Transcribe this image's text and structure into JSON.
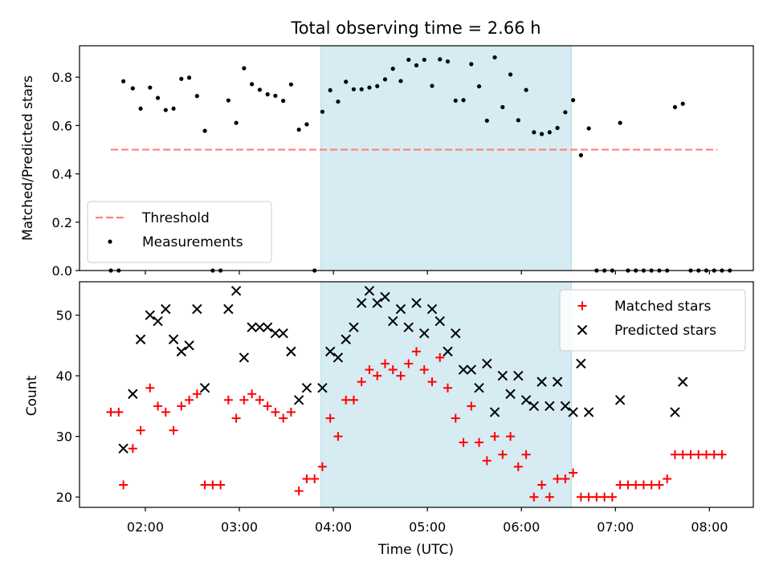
{
  "chart_data": [
    {
      "type": "scatter",
      "title": "Total observing time = 2.66 h",
      "ylabel": "Matched/Predicted stars",
      "xlabel": "",
      "xlim": [
        "01:18",
        "08:28"
      ],
      "ylim": [
        0,
        0.93
      ],
      "yticks": [
        0.0,
        0.2,
        0.4,
        0.6,
        0.8
      ],
      "yticklabels": [
        "0.0",
        "0.2",
        "0.4",
        "0.6",
        "0.8"
      ],
      "grid": false,
      "legend_position": "lower-left",
      "shaded_region": {
        "x0": "03:52",
        "x1": "06:32",
        "color": "#add8e6"
      },
      "threshold": {
        "name": "Threshold",
        "value": 0.5,
        "x0": "01:38",
        "x1": "08:05",
        "color": "#ff7f7f",
        "style": "dashed"
      },
      "series": [
        {
          "name": "Measurements",
          "color": "#000000",
          "marker": "dot",
          "points": [
            [
              "01:38",
              0
            ],
            [
              "01:43",
              0
            ],
            [
              "01:46",
              0.783
            ],
            [
              "01:52",
              0.754
            ],
            [
              "01:57",
              0.67
            ],
            [
              "02:03",
              0.757
            ],
            [
              "02:08",
              0.714
            ],
            [
              "02:13",
              0.664
            ],
            [
              "02:18",
              0.67
            ],
            [
              "02:23",
              0.793
            ],
            [
              "02:28",
              0.798
            ],
            [
              "02:33",
              0.722
            ],
            [
              "02:38",
              0.578
            ],
            [
              "02:43",
              0
            ],
            [
              "02:48",
              0
            ],
            [
              "02:53",
              0.704
            ],
            [
              "02:58",
              0.611
            ],
            [
              "03:03",
              0.837
            ],
            [
              "03:08",
              0.771
            ],
            [
              "03:13",
              0.748
            ],
            [
              "03:18",
              0.729
            ],
            [
              "03:23",
              0.723
            ],
            [
              "03:28",
              0.702
            ],
            [
              "03:33",
              0.77
            ],
            [
              "03:38",
              0.583
            ],
            [
              "03:43",
              0.605
            ],
            [
              "03:48",
              0
            ],
            [
              "03:53",
              0.657
            ],
            [
              "03:58",
              0.746
            ],
            [
              "04:03",
              0.699
            ],
            [
              "04:08",
              0.781
            ],
            [
              "04:13",
              0.75
            ],
            [
              "04:18",
              0.75
            ],
            [
              "04:23",
              0.757
            ],
            [
              "04:28",
              0.763
            ],
            [
              "04:33",
              0.791
            ],
            [
              "04:38",
              0.835
            ],
            [
              "04:43",
              0.784
            ],
            [
              "04:48",
              0.872
            ],
            [
              "04:53",
              0.849
            ],
            [
              "04:58",
              0.872
            ],
            [
              "05:03",
              0.764
            ],
            [
              "05:08",
              0.874
            ],
            [
              "05:13",
              0.865
            ],
            [
              "05:18",
              0.703
            ],
            [
              "05:23",
              0.705
            ],
            [
              "05:28",
              0.854
            ],
            [
              "05:33",
              0.762
            ],
            [
              "05:38",
              0.62
            ],
            [
              "05:43",
              0.882
            ],
            [
              "05:48",
              0.676
            ],
            [
              "05:53",
              0.811
            ],
            [
              "05:58",
              0.622
            ],
            [
              "06:03",
              0.747
            ],
            [
              "06:08",
              0.572
            ],
            [
              "06:13",
              0.565
            ],
            [
              "06:18",
              0.572
            ],
            [
              "06:23",
              0.59
            ],
            [
              "06:28",
              0.655
            ],
            [
              "06:33",
              0.705
            ],
            [
              "06:38",
              0.477
            ],
            [
              "06:43",
              0.588
            ],
            [
              "06:48",
              0
            ],
            [
              "06:53",
              0
            ],
            [
              "06:58",
              0
            ],
            [
              "07:03",
              0.611
            ],
            [
              "07:08",
              0
            ],
            [
              "07:13",
              0
            ],
            [
              "07:18",
              0
            ],
            [
              "07:23",
              0
            ],
            [
              "07:28",
              0
            ],
            [
              "07:33",
              0
            ],
            [
              "07:38",
              0.676
            ],
            [
              "07:43",
              0.69
            ],
            [
              "07:48",
              0
            ],
            [
              "07:53",
              0
            ],
            [
              "07:58",
              0
            ],
            [
              "08:03",
              0
            ],
            [
              "08:08",
              0
            ],
            [
              "08:13",
              0
            ]
          ]
        }
      ]
    },
    {
      "type": "scatter",
      "title": "",
      "xlabel": "Time (UTC)",
      "ylabel": "Count",
      "xlim": [
        "01:18",
        "08:28"
      ],
      "ylim": [
        18.3,
        55.5
      ],
      "yticks": [
        20,
        30,
        40,
        50
      ],
      "yticklabels": [
        "20",
        "30",
        "40",
        "50"
      ],
      "xticks": [
        "02:00",
        "03:00",
        "04:00",
        "05:00",
        "06:00",
        "07:00",
        "08:00"
      ],
      "xticklabels": [
        "02:00",
        "03:00",
        "04:00",
        "05:00",
        "06:00",
        "07:00",
        "08:00"
      ],
      "grid": false,
      "legend_position": "upper-right",
      "shaded_region": {
        "x0": "03:52",
        "x1": "06:32",
        "color": "#add8e6"
      },
      "series": [
        {
          "name": "Matched stars",
          "color": "#ff0000",
          "marker": "plus",
          "points": [
            [
              "01:38",
              34
            ],
            [
              "01:43",
              34
            ],
            [
              "01:46",
              22
            ],
            [
              "01:52",
              28
            ],
            [
              "01:57",
              31
            ],
            [
              "02:03",
              38
            ],
            [
              "02:08",
              35
            ],
            [
              "02:13",
              34
            ],
            [
              "02:18",
              31
            ],
            [
              "02:23",
              35
            ],
            [
              "02:28",
              36
            ],
            [
              "02:33",
              37
            ],
            [
              "02:38",
              22
            ],
            [
              "02:43",
              22
            ],
            [
              "02:48",
              22
            ],
            [
              "02:53",
              36
            ],
            [
              "02:58",
              33
            ],
            [
              "03:03",
              36
            ],
            [
              "03:08",
              37
            ],
            [
              "03:13",
              36
            ],
            [
              "03:18",
              35
            ],
            [
              "03:23",
              34
            ],
            [
              "03:28",
              33
            ],
            [
              "03:33",
              34
            ],
            [
              "03:38",
              21
            ],
            [
              "03:43",
              23
            ],
            [
              "03:48",
              23
            ],
            [
              "03:53",
              25
            ],
            [
              "03:58",
              33
            ],
            [
              "04:03",
              30
            ],
            [
              "04:08",
              36
            ],
            [
              "04:13",
              36
            ],
            [
              "04:18",
              39
            ],
            [
              "04:23",
              41
            ],
            [
              "04:28",
              40
            ],
            [
              "04:33",
              42
            ],
            [
              "04:38",
              41
            ],
            [
              "04:43",
              40
            ],
            [
              "04:48",
              42
            ],
            [
              "04:53",
              44
            ],
            [
              "04:58",
              41
            ],
            [
              "05:03",
              39
            ],
            [
              "05:08",
              43
            ],
            [
              "05:13",
              38
            ],
            [
              "05:18",
              33
            ],
            [
              "05:23",
              29
            ],
            [
              "05:28",
              35
            ],
            [
              "05:33",
              29
            ],
            [
              "05:38",
              26
            ],
            [
              "05:43",
              30
            ],
            [
              "05:48",
              27
            ],
            [
              "05:53",
              30
            ],
            [
              "05:58",
              25
            ],
            [
              "06:03",
              27
            ],
            [
              "06:08",
              20
            ],
            [
              "06:13",
              22
            ],
            [
              "06:18",
              20
            ],
            [
              "06:23",
              23
            ],
            [
              "06:28",
              23
            ],
            [
              "06:33",
              24
            ],
            [
              "06:38",
              20
            ],
            [
              "06:43",
              20
            ],
            [
              "06:48",
              20
            ],
            [
              "06:53",
              20
            ],
            [
              "06:58",
              20
            ],
            [
              "07:03",
              22
            ],
            [
              "07:08",
              22
            ],
            [
              "07:13",
              22
            ],
            [
              "07:18",
              22
            ],
            [
              "07:23",
              22
            ],
            [
              "07:28",
              22
            ],
            [
              "07:33",
              23
            ],
            [
              "07:38",
              27
            ],
            [
              "07:43",
              27
            ],
            [
              "07:48",
              27
            ],
            [
              "07:53",
              27
            ],
            [
              "07:58",
              27
            ],
            [
              "08:03",
              27
            ],
            [
              "08:08",
              27
            ]
          ]
        },
        {
          "name": "Predicted stars",
          "color": "#000000",
          "marker": "x",
          "points": [
            [
              "01:46",
              28
            ],
            [
              "01:52",
              37
            ],
            [
              "01:57",
              46
            ],
            [
              "02:03",
              50
            ],
            [
              "02:08",
              49
            ],
            [
              "02:13",
              51
            ],
            [
              "02:18",
              46
            ],
            [
              "02:23",
              44
            ],
            [
              "02:28",
              45
            ],
            [
              "02:33",
              51
            ],
            [
              "02:38",
              38
            ],
            [
              "02:53",
              51
            ],
            [
              "02:58",
              54
            ],
            [
              "03:03",
              43
            ],
            [
              "03:08",
              48
            ],
            [
              "03:13",
              48
            ],
            [
              "03:18",
              48
            ],
            [
              "03:23",
              47
            ],
            [
              "03:28",
              47
            ],
            [
              "03:33",
              44
            ],
            [
              "03:38",
              36
            ],
            [
              "03:43",
              38
            ],
            [
              "03:53",
              38
            ],
            [
              "03:58",
              44
            ],
            [
              "04:03",
              43
            ],
            [
              "04:08",
              46
            ],
            [
              "04:13",
              48
            ],
            [
              "04:18",
              52
            ],
            [
              "04:23",
              54
            ],
            [
              "04:28",
              52
            ],
            [
              "04:33",
              53
            ],
            [
              "04:38",
              49
            ],
            [
              "04:43",
              51
            ],
            [
              "04:48",
              48
            ],
            [
              "04:53",
              52
            ],
            [
              "04:58",
              47
            ],
            [
              "05:03",
              51
            ],
            [
              "05:08",
              49
            ],
            [
              "05:13",
              44
            ],
            [
              "05:18",
              47
            ],
            [
              "05:23",
              41
            ],
            [
              "05:28",
              41
            ],
            [
              "05:33",
              38
            ],
            [
              "05:38",
              42
            ],
            [
              "05:43",
              34
            ],
            [
              "05:48",
              40
            ],
            [
              "05:53",
              37
            ],
            [
              "05:58",
              40
            ],
            [
              "06:03",
              36
            ],
            [
              "06:08",
              35
            ],
            [
              "06:13",
              39
            ],
            [
              "06:18",
              35
            ],
            [
              "06:23",
              39
            ],
            [
              "06:28",
              35
            ],
            [
              "06:33",
              34
            ],
            [
              "06:38",
              42
            ],
            [
              "06:43",
              34
            ],
            [
              "07:03",
              36
            ],
            [
              "07:38",
              34
            ],
            [
              "07:43",
              39
            ]
          ]
        }
      ]
    }
  ]
}
